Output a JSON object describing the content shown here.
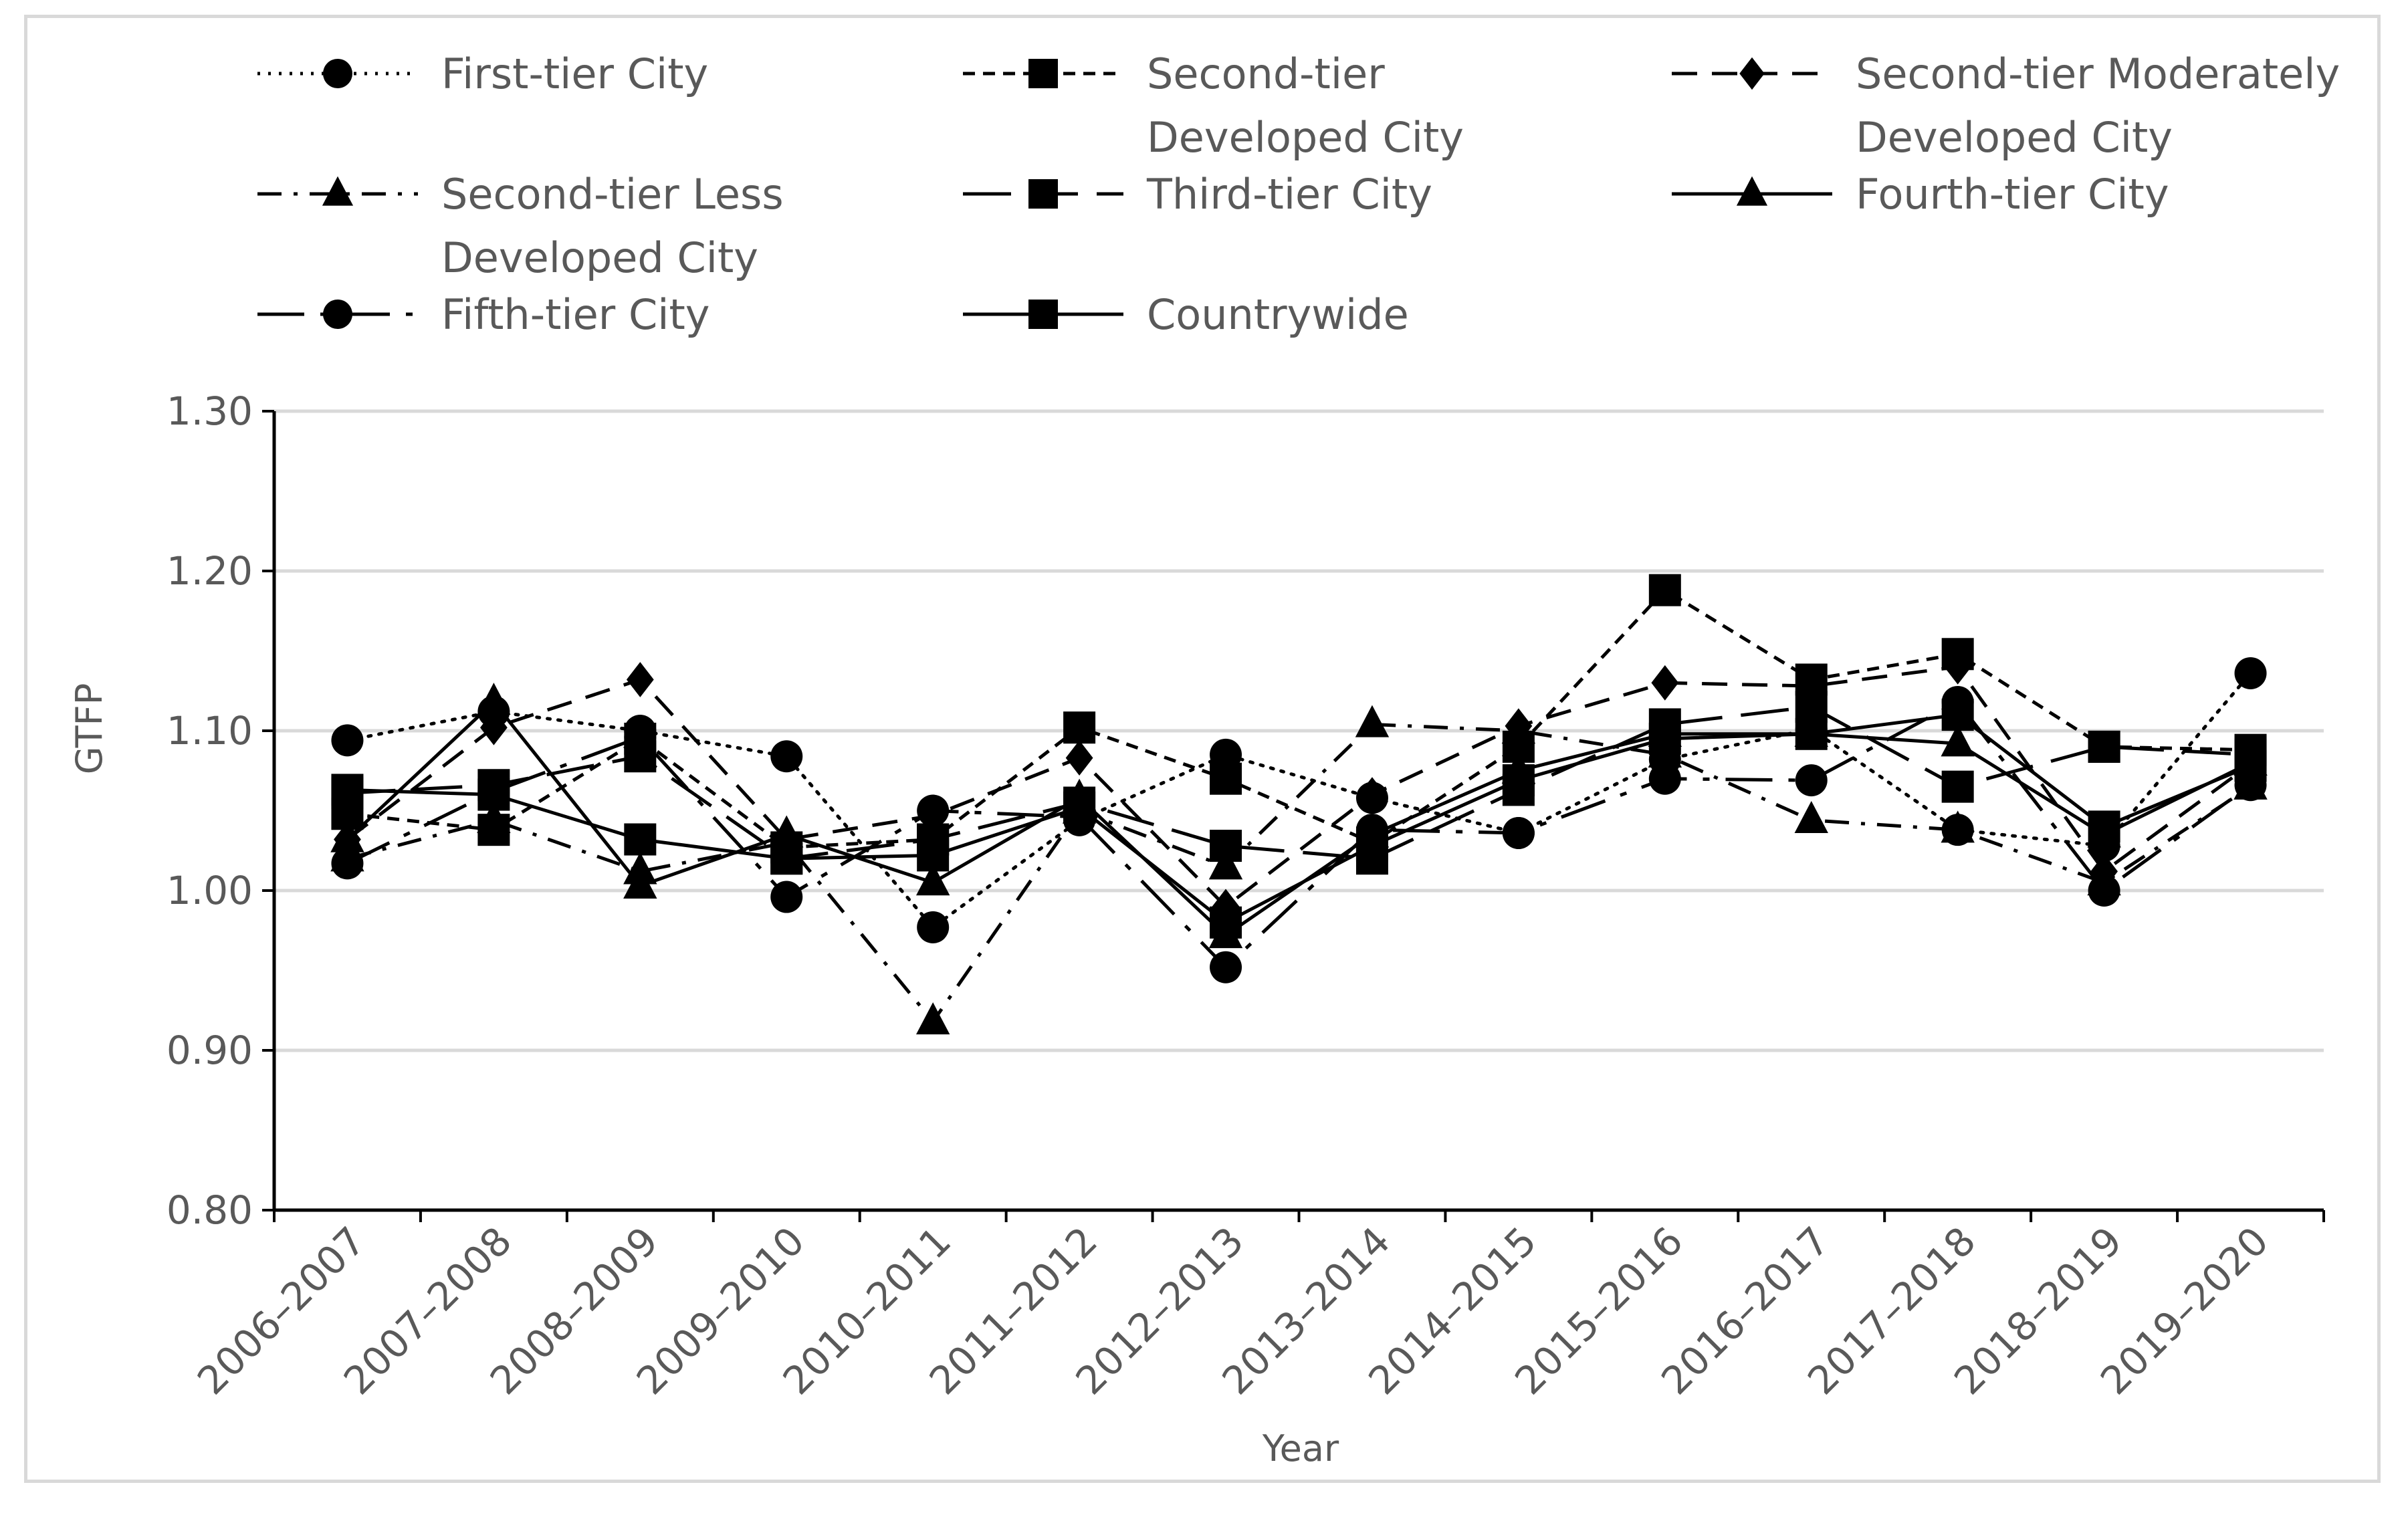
{
  "chart_data": {
    "type": "line",
    "xlabel": "Year",
    "ylabel": "GTFP",
    "ylim": [
      0.8,
      1.3
    ],
    "yticks": [
      "0.80",
      "0.90",
      "1.00",
      "1.10",
      "1.20",
      "1.30"
    ],
    "grid": "horizontal",
    "legend_position": "top",
    "categories": [
      "2006–2007",
      "2007–2008",
      "2008–2009",
      "2009–2010",
      "2010–2011",
      "2011–2012",
      "2012–2013",
      "2013–2014",
      "2014–2015",
      "2015–2016",
      "2016–2017",
      "2017–2018",
      "2018–2019",
      "2019–2020"
    ],
    "series": [
      {
        "name": "First-tier City",
        "dash": "dotted",
        "marker": "circle",
        "values": [
          1.094,
          1.112,
          1.1,
          1.084,
          0.977,
          1.044,
          1.085,
          1.058,
          1.036,
          1.082,
          1.101,
          1.038,
          1.028,
          1.136
        ]
      },
      {
        "name": "Second-tier Developed City",
        "dash": "short-dash",
        "marker": "square",
        "values": [
          1.048,
          1.038,
          1.095,
          1.027,
          1.032,
          1.102,
          1.07,
          1.03,
          1.09,
          1.188,
          1.132,
          1.148,
          1.09,
          1.088
        ]
      },
      {
        "name": "Second-tier Moderately Developed City",
        "dash": "dash",
        "marker": "diamond",
        "values": [
          1.032,
          1.102,
          1.132,
          1.032,
          1.047,
          1.083,
          0.99,
          1.06,
          1.103,
          1.13,
          1.128,
          1.14,
          1.012,
          1.079
        ]
      },
      {
        "name": "Second-tier Less Developed City",
        "dash": "dash-dot",
        "marker": "triangle",
        "values": [
          1.02,
          1.044,
          1.012,
          1.03,
          0.918,
          1.05,
          1.015,
          1.104,
          1.1,
          1.085,
          1.044,
          1.038,
          1.005,
          1.065
        ]
      },
      {
        "name": "Third-tier City",
        "dash": "long-dash",
        "marker": "square",
        "values": [
          1.061,
          1.066,
          1.084,
          1.02,
          1.032,
          1.055,
          1.028,
          1.02,
          1.063,
          1.104,
          1.115,
          1.065,
          1.09,
          1.085
        ]
      },
      {
        "name": "Fourth-tier City",
        "dash": "solid",
        "marker": "triangle",
        "values": [
          1.032,
          1.118,
          1.003,
          1.035,
          1.005,
          1.058,
          0.972,
          1.035,
          1.075,
          1.098,
          1.098,
          1.092,
          1.035,
          1.08
        ]
      },
      {
        "name": "Fifth-tier City",
        "dash": "long-dash-dot",
        "marker": "circle",
        "values": [
          1.017,
          1.062,
          1.096,
          0.996,
          1.05,
          1.046,
          0.952,
          1.038,
          1.036,
          1.07,
          1.069,
          1.118,
          1.0,
          1.066
        ]
      },
      {
        "name": "Countrywide",
        "dash": "solid",
        "marker": "square",
        "values": [
          1.063,
          1.06,
          1.032,
          1.02,
          1.022,
          1.052,
          0.98,
          1.028,
          1.069,
          1.095,
          1.098,
          1.11,
          1.04,
          1.078
        ]
      }
    ]
  },
  "legend_labels": [
    [
      "First-tier City"
    ],
    [
      "Second-tier",
      "Developed City"
    ],
    [
      "Second-tier Moderately",
      "Developed City"
    ],
    [
      "Second-tier Less",
      "Developed City"
    ],
    [
      "Third-tier City"
    ],
    [
      "Fourth-tier City"
    ],
    [
      "Fifth-tier City"
    ],
    [
      "Countrywide"
    ]
  ]
}
